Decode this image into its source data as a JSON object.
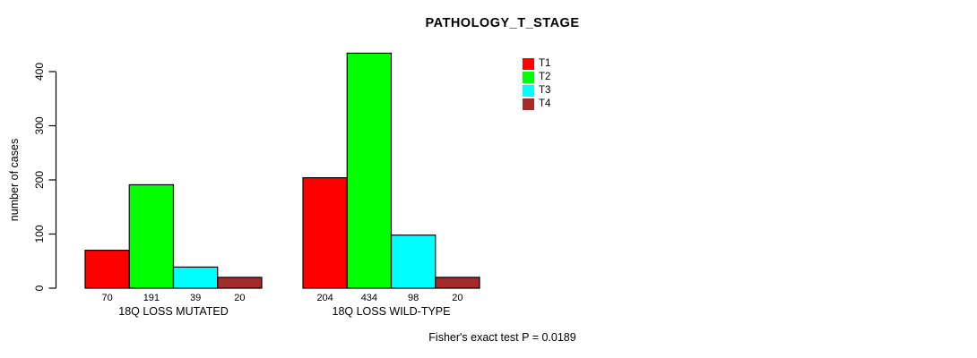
{
  "chart_data": {
    "type": "bar",
    "title": "PATHOLOGY_T_STAGE",
    "ylabel": "number of cases",
    "xlabel": "",
    "footnote": "Fisher's exact test P = 0.0189",
    "ylim": [
      0,
      400
    ],
    "yticks": [
      0,
      100,
      200,
      300,
      400
    ],
    "grid": false,
    "legend_position": "top-right",
    "categories": [
      "18Q LOSS MUTATED",
      "18Q LOSS WILD-TYPE"
    ],
    "series": [
      {
        "name": "T1",
        "color": "#ff0000",
        "values": [
          70,
          204
        ]
      },
      {
        "name": "T2",
        "color": "#00ff00",
        "values": [
          191,
          434
        ]
      },
      {
        "name": "T3",
        "color": "#00ffff",
        "values": [
          39,
          98
        ]
      },
      {
        "name": "T4",
        "color": "#a52a2a",
        "values": [
          20,
          20
        ]
      }
    ],
    "bar_value_labels": [
      [
        70,
        191,
        39,
        20
      ],
      [
        204,
        434,
        98,
        20
      ]
    ],
    "bar_border_color": "#000000",
    "background_color": "#ffffff"
  }
}
